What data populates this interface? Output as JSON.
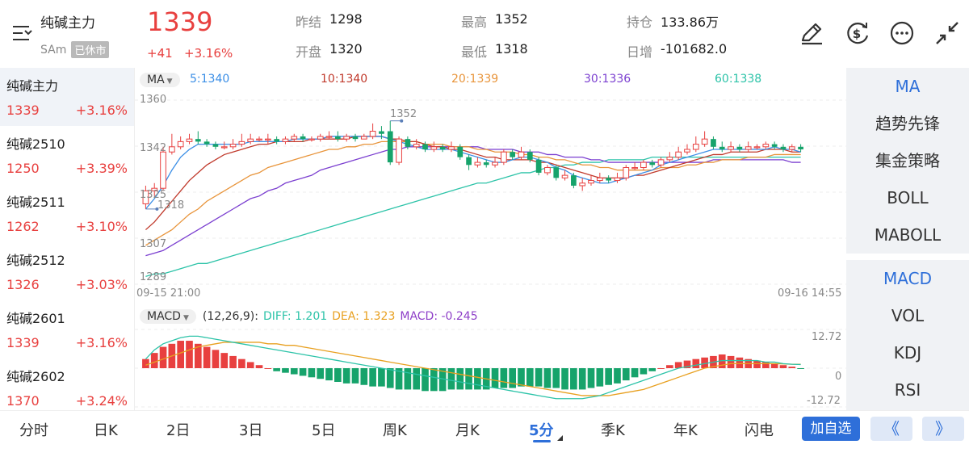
{
  "header": {
    "title": "纯碱主力",
    "code": "SAm",
    "status_badge": "已休市",
    "price": "1339",
    "change": "+41",
    "change_pct": "+3.16%",
    "stats": [
      {
        "label": "昨结",
        "value": "1298",
        "color": "#222222"
      },
      {
        "label": "开盘",
        "value": "1320",
        "color": "#e8403f"
      },
      {
        "label": "最高",
        "value": "1352",
        "color": "#e8403f"
      },
      {
        "label": "最低",
        "value": "1318",
        "color": "#e8403f"
      },
      {
        "label": "持仓",
        "value": "133.86万",
        "color": "#222222"
      },
      {
        "label": "日增",
        "value": "-101682.0",
        "color": "#222222"
      }
    ],
    "icons": [
      "draw-pen-icon",
      "dollar-swap-icon",
      "more-icon",
      "collapse-icon"
    ]
  },
  "contracts": [
    {
      "name": "纯碱主力",
      "price": "1339",
      "pct": "+3.16%",
      "active": true
    },
    {
      "name": "纯碱2510",
      "price": "1250",
      "pct": "+3.39%",
      "active": false
    },
    {
      "name": "纯碱2511",
      "price": "1262",
      "pct": "+3.10%",
      "active": false
    },
    {
      "name": "纯碱2512",
      "price": "1326",
      "pct": "+3.03%",
      "active": false
    },
    {
      "name": "纯碱2601",
      "price": "1339",
      "pct": "+3.16%",
      "active": false
    },
    {
      "name": "纯碱2602",
      "price": "1370",
      "pct": "+3.24%",
      "active": false
    }
  ],
  "main_chart": {
    "indicator": "MA",
    "ma_labels": [
      {
        "text": "5:1340",
        "color": "#3a8ee6"
      },
      {
        "text": "10:1340",
        "color": "#c0392b"
      },
      {
        "text": "20:1339",
        "color": "#e8943a"
      },
      {
        "text": "30:1336",
        "color": "#7b3fd0"
      },
      {
        "text": "60:1338",
        "color": "#2cc3a8"
      }
    ],
    "y_ticks": [
      "1360",
      "1342",
      "1325",
      "1307",
      "1289"
    ],
    "time_start": "09-15 21:00",
    "time_end": "09-16 14:55",
    "high_label": "1352",
    "low_label": "1318",
    "colors": {
      "up": "#e8403f",
      "down": "#16a36b"
    }
  },
  "macd_chart": {
    "indicator": "MACD",
    "params": "(12,26,9):",
    "diff_label": "DIFF: 1.201",
    "dea_label": "DEA: 1.323",
    "macd_label": "MACD: -0.245",
    "y_ticks": [
      "12.72",
      "0",
      "-12.72"
    ],
    "diff_color": "#2cc3a8",
    "dea_color": "#e8a020",
    "macd_color": "#8e3fc8"
  },
  "indicators": [
    "MA",
    "趋势先锋",
    "集金策略",
    "BOLL",
    "MABOLL"
  ],
  "sub_indicators": [
    "MACD",
    "VOL",
    "KDJ",
    "RSI"
  ],
  "tabs": [
    "分时",
    "日K",
    "2日",
    "3日",
    "5日",
    "周K",
    "月K",
    "5分",
    "季K",
    "年K",
    "闪电"
  ],
  "active_tab": "5分",
  "watch_button": "加自选",
  "nav_prev": "《",
  "nav_next": "》",
  "chart_data": {
    "type": "candlestick",
    "ylim": [
      1289,
      1360
    ],
    "candles": [
      {
        "o": 1320,
        "c": 1325,
        "h": 1327,
        "l": 1318
      },
      {
        "o": 1325,
        "c": 1326,
        "h": 1328,
        "l": 1323
      },
      {
        "o": 1326,
        "c": 1340,
        "h": 1342,
        "l": 1325
      },
      {
        "o": 1340,
        "c": 1342,
        "h": 1347,
        "l": 1339
      },
      {
        "o": 1342,
        "c": 1344,
        "h": 1346,
        "l": 1341
      },
      {
        "o": 1344,
        "c": 1345,
        "h": 1347,
        "l": 1343
      },
      {
        "o": 1345,
        "c": 1344,
        "h": 1348,
        "l": 1343
      },
      {
        "o": 1344,
        "c": 1343,
        "h": 1345,
        "l": 1342
      },
      {
        "o": 1343,
        "c": 1342,
        "h": 1344,
        "l": 1341
      },
      {
        "o": 1342,
        "c": 1342,
        "h": 1344,
        "l": 1341
      },
      {
        "o": 1342,
        "c": 1343,
        "h": 1345,
        "l": 1341
      },
      {
        "o": 1343,
        "c": 1344,
        "h": 1347,
        "l": 1342
      },
      {
        "o": 1344,
        "c": 1345,
        "h": 1347,
        "l": 1343
      },
      {
        "o": 1345,
        "c": 1345,
        "h": 1346,
        "l": 1344
      },
      {
        "o": 1345,
        "c": 1345,
        "h": 1347,
        "l": 1343
      },
      {
        "o": 1345,
        "c": 1344,
        "h": 1346,
        "l": 1343
      },
      {
        "o": 1344,
        "c": 1345,
        "h": 1346,
        "l": 1343
      },
      {
        "o": 1345,
        "c": 1346,
        "h": 1347,
        "l": 1344
      },
      {
        "o": 1346,
        "c": 1345,
        "h": 1347,
        "l": 1344
      },
      {
        "o": 1345,
        "c": 1345,
        "h": 1346,
        "l": 1344
      },
      {
        "o": 1345,
        "c": 1346,
        "h": 1347,
        "l": 1344
      },
      {
        "o": 1346,
        "c": 1346,
        "h": 1348,
        "l": 1345
      },
      {
        "o": 1346,
        "c": 1345,
        "h": 1348,
        "l": 1344
      },
      {
        "o": 1345,
        "c": 1346,
        "h": 1347,
        "l": 1344
      },
      {
        "o": 1346,
        "c": 1345,
        "h": 1347,
        "l": 1344
      },
      {
        "o": 1345,
        "c": 1346,
        "h": 1347,
        "l": 1345
      },
      {
        "o": 1346,
        "c": 1348,
        "h": 1351,
        "l": 1345
      },
      {
        "o": 1348,
        "c": 1347,
        "h": 1350,
        "l": 1345
      },
      {
        "o": 1348,
        "c": 1336,
        "h": 1352,
        "l": 1335
      },
      {
        "o": 1336,
        "c": 1345,
        "h": 1346,
        "l": 1335
      },
      {
        "o": 1345,
        "c": 1342,
        "h": 1346,
        "l": 1341
      },
      {
        "o": 1342,
        "c": 1343,
        "h": 1345,
        "l": 1341
      },
      {
        "o": 1343,
        "c": 1341,
        "h": 1344,
        "l": 1340
      },
      {
        "o": 1341,
        "c": 1342,
        "h": 1344,
        "l": 1340
      },
      {
        "o": 1342,
        "c": 1341,
        "h": 1343,
        "l": 1340
      },
      {
        "o": 1341,
        "c": 1342,
        "h": 1344,
        "l": 1340
      },
      {
        "o": 1342,
        "c": 1338,
        "h": 1343,
        "l": 1337
      },
      {
        "o": 1338,
        "c": 1335,
        "h": 1339,
        "l": 1333
      },
      {
        "o": 1335,
        "c": 1336,
        "h": 1338,
        "l": 1334
      },
      {
        "o": 1336,
        "c": 1335,
        "h": 1337,
        "l": 1334
      },
      {
        "o": 1335,
        "c": 1336,
        "h": 1338,
        "l": 1334
      },
      {
        "o": 1336,
        "c": 1340,
        "h": 1341,
        "l": 1335
      },
      {
        "o": 1340,
        "c": 1338,
        "h": 1341,
        "l": 1337
      },
      {
        "o": 1338,
        "c": 1340,
        "h": 1342,
        "l": 1337
      },
      {
        "o": 1340,
        "c": 1337,
        "h": 1341,
        "l": 1336
      },
      {
        "o": 1337,
        "c": 1332,
        "h": 1338,
        "l": 1331
      },
      {
        "o": 1332,
        "c": 1334,
        "h": 1335,
        "l": 1331
      },
      {
        "o": 1334,
        "c": 1330,
        "h": 1335,
        "l": 1329
      },
      {
        "o": 1330,
        "c": 1331,
        "h": 1333,
        "l": 1329
      },
      {
        "o": 1331,
        "c": 1327,
        "h": 1332,
        "l": 1326
      },
      {
        "o": 1327,
        "c": 1328,
        "h": 1330,
        "l": 1325
      },
      {
        "o": 1328,
        "c": 1329,
        "h": 1331,
        "l": 1327
      },
      {
        "o": 1329,
        "c": 1330,
        "h": 1332,
        "l": 1328
      },
      {
        "o": 1330,
        "c": 1329,
        "h": 1331,
        "l": 1328
      },
      {
        "o": 1329,
        "c": 1330,
        "h": 1332,
        "l": 1328
      },
      {
        "o": 1330,
        "c": 1334,
        "h": 1335,
        "l": 1329
      },
      {
        "o": 1334,
        "c": 1334,
        "h": 1336,
        "l": 1333
      },
      {
        "o": 1334,
        "c": 1336,
        "h": 1337,
        "l": 1333
      },
      {
        "o": 1336,
        "c": 1335,
        "h": 1337,
        "l": 1334
      },
      {
        "o": 1335,
        "c": 1337,
        "h": 1338,
        "l": 1334
      },
      {
        "o": 1337,
        "c": 1338,
        "h": 1340,
        "l": 1336
      },
      {
        "o": 1338,
        "c": 1340,
        "h": 1342,
        "l": 1337
      },
      {
        "o": 1340,
        "c": 1341,
        "h": 1343,
        "l": 1339
      },
      {
        "o": 1341,
        "c": 1343,
        "h": 1346,
        "l": 1340
      },
      {
        "o": 1343,
        "c": 1345,
        "h": 1348,
        "l": 1342
      },
      {
        "o": 1345,
        "c": 1342,
        "h": 1346,
        "l": 1341
      },
      {
        "o": 1342,
        "c": 1341,
        "h": 1344,
        "l": 1340
      },
      {
        "o": 1341,
        "c": 1342,
        "h": 1344,
        "l": 1340
      },
      {
        "o": 1342,
        "c": 1341,
        "h": 1343,
        "l": 1340
      },
      {
        "o": 1341,
        "c": 1342,
        "h": 1344,
        "l": 1340
      },
      {
        "o": 1342,
        "c": 1342,
        "h": 1343,
        "l": 1341
      },
      {
        "o": 1342,
        "c": 1343,
        "h": 1344,
        "l": 1341
      },
      {
        "o": 1343,
        "c": 1342,
        "h": 1344,
        "l": 1341
      },
      {
        "o": 1342,
        "c": 1341,
        "h": 1343,
        "l": 1340
      },
      {
        "o": 1341,
        "c": 1342,
        "h": 1343,
        "l": 1340
      },
      {
        "o": 1342,
        "c": 1341,
        "h": 1343,
        "l": 1340
      }
    ],
    "ma5": [
      1318,
      1322,
      1327,
      1333,
      1338,
      1341,
      1343,
      1343,
      1343,
      1343,
      1343,
      1343,
      1344,
      1344,
      1344,
      1344,
      1344,
      1345,
      1345,
      1345,
      1345,
      1346,
      1346,
      1346,
      1346,
      1346,
      1346,
      1346,
      1345,
      1344,
      1343,
      1342,
      1341,
      1341,
      1341,
      1341,
      1340,
      1339,
      1338,
      1337,
      1336,
      1336,
      1337,
      1338,
      1338,
      1337,
      1336,
      1334,
      1333,
      1331,
      1330,
      1329,
      1328,
      1328,
      1329,
      1330,
      1331,
      1332,
      1333,
      1335,
      1336,
      1337,
      1338,
      1339,
      1340,
      1341,
      1341,
      1341,
      1341,
      1341,
      1341,
      1341,
      1342,
      1341,
      1341,
      1340
    ],
    "ma10": [
      1310,
      1313,
      1317,
      1321,
      1325,
      1329,
      1332,
      1335,
      1337,
      1339,
      1340,
      1341,
      1342,
      1343,
      1343,
      1344,
      1344,
      1344,
      1344,
      1345,
      1345,
      1345,
      1345,
      1345,
      1346,
      1346,
      1346,
      1346,
      1345,
      1345,
      1344,
      1344,
      1343,
      1342,
      1342,
      1341,
      1341,
      1340,
      1339,
      1338,
      1338,
      1337,
      1337,
      1337,
      1337,
      1336,
      1336,
      1335,
      1334,
      1333,
      1332,
      1331,
      1330,
      1330,
      1330,
      1330,
      1331,
      1331,
      1332,
      1333,
      1334,
      1335,
      1336,
      1337,
      1338,
      1339,
      1339,
      1340,
      1340,
      1340,
      1340,
      1341,
      1341,
      1341,
      1340,
      1340
    ],
    "ma20": [
      1304,
      1306,
      1308,
      1310,
      1313,
      1316,
      1318,
      1321,
      1323,
      1325,
      1327,
      1329,
      1331,
      1332,
      1334,
      1335,
      1336,
      1337,
      1338,
      1339,
      1340,
      1341,
      1341,
      1342,
      1342,
      1343,
      1343,
      1344,
      1344,
      1344,
      1344,
      1344,
      1343,
      1343,
      1343,
      1342,
      1342,
      1342,
      1341,
      1341,
      1340,
      1340,
      1340,
      1339,
      1339,
      1338,
      1338,
      1337,
      1337,
      1336,
      1335,
      1335,
      1334,
      1334,
      1333,
      1333,
      1333,
      1333,
      1333,
      1334,
      1334,
      1334,
      1335,
      1335,
      1336,
      1336,
      1337,
      1337,
      1337,
      1338,
      1338,
      1338,
      1339,
      1339,
      1339,
      1339
    ],
    "ma30": [
      1300,
      1301,
      1302,
      1304,
      1306,
      1308,
      1310,
      1312,
      1314,
      1316,
      1318,
      1320,
      1322,
      1323,
      1325,
      1326,
      1328,
      1329,
      1330,
      1331,
      1333,
      1334,
      1335,
      1336,
      1337,
      1338,
      1339,
      1340,
      1341,
      1341,
      1342,
      1342,
      1342,
      1342,
      1342,
      1342,
      1342,
      1342,
      1342,
      1341,
      1341,
      1341,
      1341,
      1340,
      1340,
      1340,
      1339,
      1339,
      1338,
      1338,
      1338,
      1337,
      1337,
      1336,
      1336,
      1336,
      1336,
      1336,
      1336,
      1336,
      1336,
      1336,
      1336,
      1336,
      1336,
      1337,
      1337,
      1337,
      1337,
      1337,
      1337,
      1337,
      1337,
      1337,
      1336,
      1336
    ],
    "ma60": [
      1292,
      1293,
      1293,
      1294,
      1295,
      1296,
      1297,
      1297,
      1298,
      1299,
      1300,
      1301,
      1302,
      1303,
      1304,
      1305,
      1306,
      1307,
      1308,
      1309,
      1310,
      1311,
      1312,
      1313,
      1314,
      1315,
      1316,
      1317,
      1318,
      1319,
      1320,
      1321,
      1322,
      1323,
      1324,
      1325,
      1326,
      1327,
      1328,
      1328,
      1329,
      1330,
      1331,
      1332,
      1332,
      1333,
      1334,
      1334,
      1335,
      1335,
      1336,
      1336,
      1336,
      1337,
      1337,
      1337,
      1337,
      1337,
      1338,
      1338,
      1338,
      1338,
      1338,
      1338,
      1338,
      1338,
      1338,
      1338,
      1338,
      1338,
      1338,
      1338,
      1338,
      1338,
      1338,
      1338
    ],
    "macd_hist": [
      3,
      5,
      7,
      8,
      9,
      9,
      8,
      7,
      6,
      5,
      4,
      3,
      2,
      1,
      0,
      -1,
      -1.5,
      -2,
      -2.5,
      -3,
      -3.5,
      -4,
      -4.5,
      -5,
      -5,
      -5.5,
      -6,
      -6,
      -6.5,
      -7,
      -7,
      -7,
      -7.5,
      -7.5,
      -7.5,
      -7,
      -7,
      -7,
      -7,
      -7,
      -6.5,
      -6.5,
      -6.5,
      -6,
      -6,
      -6,
      -6.5,
      -6.5,
      -7,
      -7,
      -7,
      -6.5,
      -6,
      -5.5,
      -5,
      -4,
      -3,
      -2,
      -1,
      0,
      1,
      2,
      2.5,
      3,
      3.5,
      4,
      4.5,
      4,
      3.5,
      3,
      2.5,
      2,
      1.5,
      1,
      0.5,
      -0.2
    ],
    "diff": [
      3,
      6,
      8,
      9,
      10,
      10.5,
      10.5,
      10,
      9.5,
      9,
      8.5,
      8,
      7.5,
      7,
      6.5,
      6,
      5.5,
      5,
      4.5,
      4,
      3.5,
      3,
      2.5,
      2,
      1.5,
      1,
      0.5,
      0,
      -0.5,
      -1,
      -1.5,
      -2,
      -2.5,
      -3,
      -3.5,
      -4,
      -4.5,
      -5,
      -5.5,
      -6,
      -6.5,
      -7,
      -7.5,
      -8,
      -8.5,
      -9,
      -9.5,
      -10,
      -10,
      -10,
      -10,
      -9.5,
      -9,
      -8,
      -7,
      -6,
      -5,
      -4,
      -3,
      -2,
      -1,
      0,
      0.5,
      1,
      1.5,
      2,
      2.5,
      2.5,
      2.5,
      2.5,
      2.5,
      2,
      2,
      1.5,
      1.3,
      1.2
    ],
    "dea": [
      1,
      2,
      3,
      4,
      5,
      6,
      7,
      7.5,
      8,
      8.5,
      8.5,
      8.5,
      8.5,
      8.5,
      8,
      8,
      7.5,
      7.5,
      7,
      6.5,
      6,
      5.5,
      5,
      4.5,
      4,
      3.5,
      3,
      2.5,
      2,
      1.5,
      1,
      0.5,
      0,
      -0.5,
      -1,
      -1.5,
      -2,
      -2.5,
      -3,
      -3.5,
      -4,
      -4.5,
      -5,
      -5.5,
      -6,
      -6.5,
      -7,
      -7.5,
      -8,
      -8.5,
      -9,
      -9,
      -9,
      -9,
      -8.5,
      -8,
      -7.5,
      -7,
      -6,
      -5,
      -4,
      -3,
      -2,
      -1,
      0,
      0.5,
      1,
      1.5,
      1.5,
      1.5,
      1.5,
      1.5,
      1.5,
      1.4,
      1.3,
      1.3
    ]
  }
}
